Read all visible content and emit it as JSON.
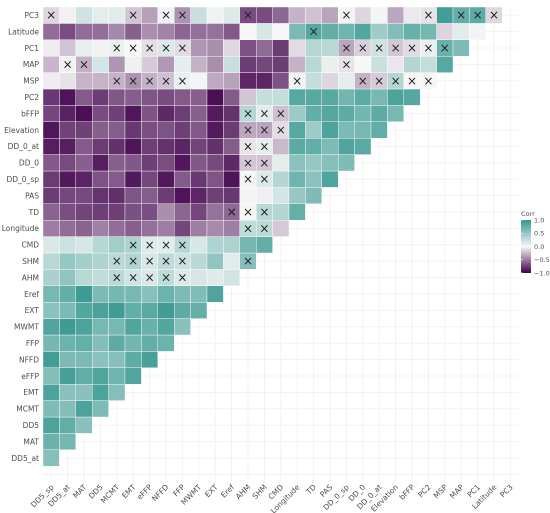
{
  "chart_data": {
    "type": "heatmap",
    "variables": [
      "DD5_sp",
      "DD5_at",
      "MAT",
      "DD5",
      "MCMT",
      "EMT",
      "eFFP",
      "NFFD",
      "FFP",
      "MWMT",
      "EXT",
      "Eref",
      "AHM",
      "SHM",
      "CMD",
      "Longitude",
      "TD",
      "PAS",
      "DD_0_sp",
      "DD_0",
      "DD_0_at",
      "Elevation",
      "bFFP",
      "PC2",
      "MSP",
      "MAP",
      "PC1",
      "Latitude",
      "PC3"
    ],
    "legend": {
      "title": "Corr",
      "ticks": [
        1.0,
        0.5,
        0.0,
        -0.5,
        -1.0
      ],
      "tick_labels": [
        "1.0",
        "0.5",
        "0.0",
        "−0.5",
        "−1.0"
      ],
      "colors": {
        "high": "#35978f",
        "mid": "#f7f7f7",
        "low": "#40004b"
      }
    },
    "cross_glyph": "×",
    "nonsignificant_marks": [
      [
        "SHM",
        "AHM"
      ],
      [
        "SHM",
        "Longitude"
      ],
      [
        "SHM",
        "TD"
      ],
      [
        "SHM",
        "DD_0_sp"
      ],
      [
        "SHM",
        "DD_0"
      ],
      [
        "SHM",
        "DD_0_at"
      ],
      [
        "SHM",
        "Elevation"
      ],
      [
        "SHM",
        "bFFP"
      ],
      [
        "CMD",
        "Elevation"
      ],
      [
        "CMD",
        "bFFP"
      ],
      [
        "AHM",
        "Longitude"
      ],
      [
        "AHM",
        "TD"
      ],
      [
        "AHM",
        "DD_0_sp"
      ],
      [
        "AHM",
        "DD_0"
      ],
      [
        "AHM",
        "DD_0_at"
      ],
      [
        "AHM",
        "Elevation"
      ],
      [
        "AHM",
        "bFFP"
      ],
      [
        "AHM",
        "PC3"
      ],
      [
        "Eref",
        "TD"
      ],
      [
        "FFP",
        "AHM"
      ],
      [
        "FFP",
        "SHM"
      ],
      [
        "FFP",
        "CMD"
      ],
      [
        "FFP",
        "MSP"
      ],
      [
        "FFP",
        "PC1"
      ],
      [
        "FFP",
        "PC3"
      ],
      [
        "NFFD",
        "AHM"
      ],
      [
        "NFFD",
        "SHM"
      ],
      [
        "NFFD",
        "CMD"
      ],
      [
        "NFFD",
        "MSP"
      ],
      [
        "NFFD",
        "PC1"
      ],
      [
        "NFFD",
        "PC3"
      ],
      [
        "eFFP",
        "AHM"
      ],
      [
        "eFFP",
        "SHM"
      ],
      [
        "eFFP",
        "CMD"
      ],
      [
        "eFFP",
        "MSP"
      ],
      [
        "eFFP",
        "PC1"
      ],
      [
        "EMT",
        "AHM"
      ],
      [
        "EMT",
        "SHM"
      ],
      [
        "EMT",
        "CMD"
      ],
      [
        "EMT",
        "MSP"
      ],
      [
        "EMT",
        "PC1"
      ],
      [
        "EMT",
        "PC3"
      ],
      [
        "MCMT",
        "AHM"
      ],
      [
        "MCMT",
        "SHM"
      ],
      [
        "MCMT",
        "MSP"
      ],
      [
        "MCMT",
        "PC1"
      ],
      [
        "MAT",
        "MAP"
      ],
      [
        "DD5_at",
        "MAP"
      ],
      [
        "DD5_sp",
        "PC3"
      ],
      [
        "Longitude",
        "MSP"
      ],
      [
        "DD_0_sp",
        "MAP"
      ],
      [
        "DD_0_sp",
        "PC1"
      ],
      [
        "DD_0_sp",
        "PC3"
      ],
      [
        "DD_0",
        "MSP"
      ],
      [
        "DD_0",
        "PC1"
      ],
      [
        "DD_0_at",
        "MSP"
      ],
      [
        "DD_0_at",
        "PC1"
      ],
      [
        "Elevation",
        "MSP"
      ],
      [
        "Elevation",
        "PC1"
      ],
      [
        "bFFP",
        "MSP"
      ],
      [
        "bFFP",
        "PC1"
      ],
      [
        "PC2",
        "MSP"
      ],
      [
        "PC2",
        "PC1"
      ],
      [
        "PC2",
        "PC3"
      ],
      [
        "MSP",
        "PC1"
      ],
      [
        "MAP",
        "PC3"
      ],
      [
        "PC1",
        "PC3"
      ],
      [
        "Latitude",
        "PC3"
      ],
      [
        "TD",
        "Latitude"
      ],
      [
        "Eref",
        "TD"
      ]
    ]
  }
}
